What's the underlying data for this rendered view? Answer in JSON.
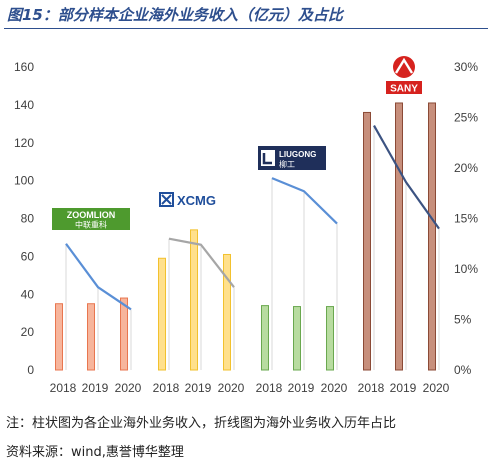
{
  "figure": {
    "title": "图15：部分样本企业海外业务收入（亿元）及占比",
    "note": "注：柱状图为各企业海外业务收入，折线图为海外业务收入历年占比",
    "source": "资料来源：wind,惠誉博华整理"
  },
  "logos": {
    "zoomlion": {
      "line1": "ZOOMLION",
      "line2": "中联重科"
    },
    "xcmg": {
      "text": "XCMG"
    },
    "liugong": {
      "text": "LIUGONG",
      "sub": "柳工"
    },
    "sany": {
      "text": "SANY"
    }
  },
  "chart_data": {
    "type": "bar",
    "categories": [
      "2018",
      "2019",
      "2020",
      "2018",
      "2019",
      "2020",
      "2018",
      "2019",
      "2020",
      "2018",
      "2019",
      "2020"
    ],
    "groups": [
      "ZOOMLION",
      "XCMG",
      "LIUGONG",
      "SANY"
    ],
    "y_left": {
      "ticks": [
        "0",
        "20",
        "40",
        "60",
        "80",
        "100",
        "120",
        "140",
        "160"
      ],
      "range": [
        0,
        160
      ]
    },
    "y_right": {
      "ticks": [
        "0%",
        "5%",
        "10%",
        "15%",
        "20%",
        "25%",
        "30%"
      ],
      "range": [
        0,
        30
      ]
    },
    "series": [
      {
        "type": "bar",
        "axis": "left",
        "values": [
          35,
          35,
          38,
          59,
          74,
          61,
          34,
          33.5,
          33.5,
          136,
          141,
          141
        ]
      },
      {
        "type": "line",
        "axis": "right",
        "values": [
          12.5,
          8.2,
          6.0,
          13.0,
          12.4,
          8.2,
          19.0,
          17.7,
          14.5,
          24.2,
          18.6,
          14.0
        ]
      }
    ],
    "colors": {
      "bar_fill": [
        "#f7b59c",
        "#ffe08c",
        "#b8dca0",
        "#c78f7c"
      ],
      "bar_stroke": [
        "#e8764f",
        "#f2c12e",
        "#6aa84f",
        "#8b4a36"
      ],
      "line": [
        "#5a8fd6",
        "#a6a6a6",
        "#5a8fd6",
        "#3c5382"
      ],
      "sany_red": "#d6221e",
      "xcmg_blue": "#1f4e9b",
      "zoomlion_green": "#4e9a2e"
    },
    "grid": false,
    "legend": "none"
  }
}
